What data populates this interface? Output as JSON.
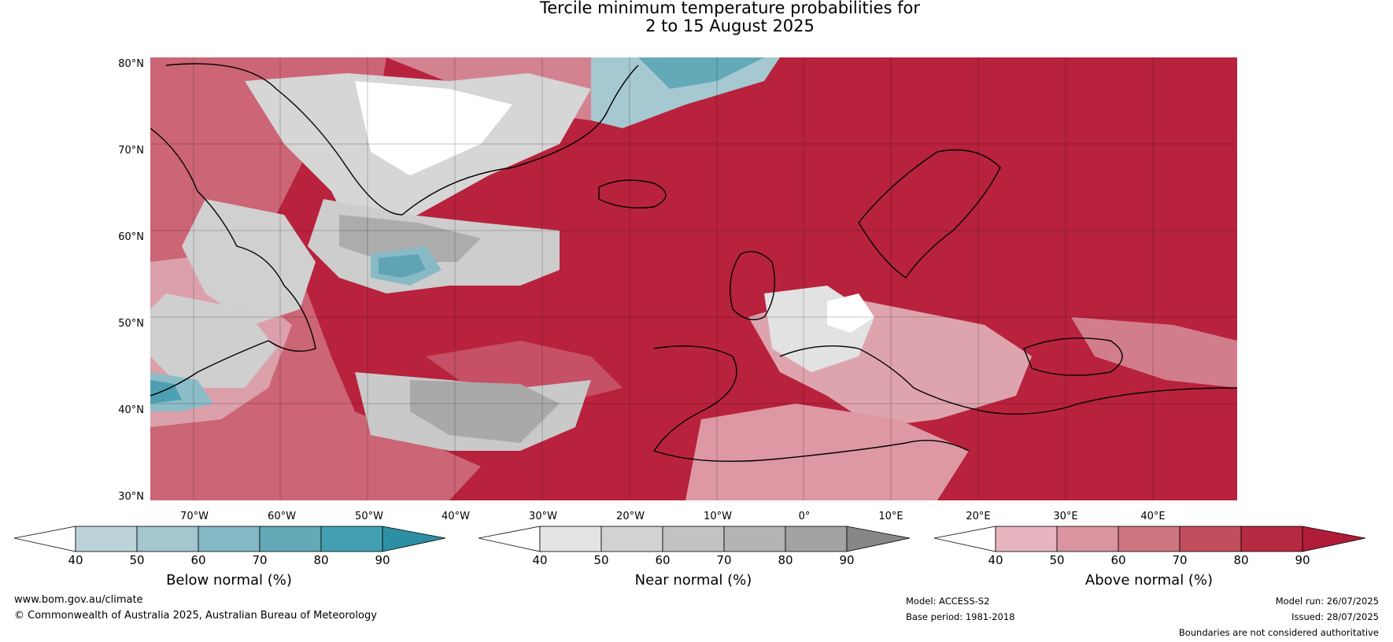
{
  "title_line1": "Tercile minimum temperature probabilities for",
  "title_line2": "2 to 15 August 2025",
  "lat_labels": [
    "80°N",
    "70°N",
    "60°N",
    "50°N",
    "40°N",
    "30°N"
  ],
  "lon_labels": [
    "70°W",
    "60°W",
    "50°W",
    "40°W",
    "30°W",
    "20°W",
    "10°W",
    "0°",
    "10°E",
    "20°E",
    "30°E",
    "40°E"
  ],
  "colorbars": [
    {
      "title": "Below normal (%)",
      "ticks": [
        "40",
        "50",
        "60",
        "70",
        "80",
        "90"
      ],
      "colors": [
        "#ffffff",
        "#bdd3da",
        "#a3c6cf",
        "#83b8c4",
        "#63a9b8",
        "#43a0b2",
        "#2d8fa3"
      ]
    },
    {
      "title": "Near normal (%)",
      "ticks": [
        "40",
        "50",
        "60",
        "70",
        "80",
        "90"
      ],
      "colors": [
        "#ffffff",
        "#e4e4e4",
        "#d2d2d2",
        "#c2c2c2",
        "#b4b4b4",
        "#a3a3a3",
        "#878787"
      ]
    },
    {
      "title": "Above normal (%)",
      "ticks": [
        "40",
        "50",
        "60",
        "70",
        "80",
        "90"
      ],
      "colors": [
        "#ffffff",
        "#e6b5bf",
        "#d9949f",
        "#cd7580",
        "#c14d5e",
        "#b52a40",
        "#b01c38"
      ]
    }
  ],
  "footer": {
    "website": "www.bom.gov.au/climate",
    "copyright": "© Commonwealth of Australia 2025, Australian Bureau of Meteorology",
    "model": "Model: ACCESS-S2",
    "base_period": "Base period: 1981-2018",
    "model_run": "Model run: 26/07/2025",
    "issued": "Issued: 28/07/2025",
    "disclaimer": "Boundaries are not considered authoritative"
  },
  "map_colors": {
    "ocean_above": "#b8223d",
    "above_mid": "#c9586a",
    "above_light": "#dd9aa5",
    "near": "#c8c8c8",
    "near_dark": "#a8a8a8",
    "below": "#a9c9d1",
    "coast": "#000000",
    "borders": "#808080"
  }
}
